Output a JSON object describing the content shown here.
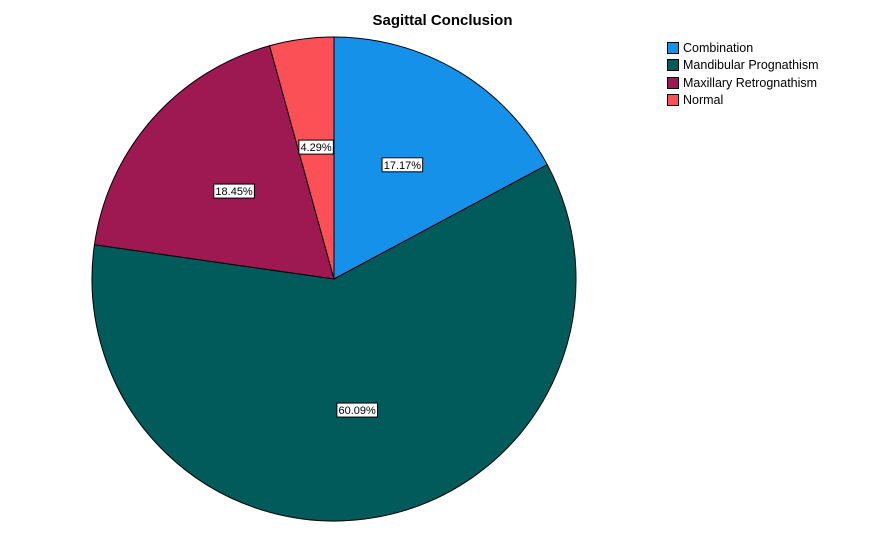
{
  "chart_data": {
    "type": "pie",
    "title": "Sagittal Conclusion",
    "legend_position": "top-right",
    "slices": [
      {
        "label": "Combination",
        "value": 17.17,
        "display": "17.17%",
        "color": "#1591EA"
      },
      {
        "label": "Mandibular Prognathism",
        "value": 60.09,
        "display": "60.09%",
        "color": "#015B5B"
      },
      {
        "label": "Maxillary Retrognathism",
        "value": 18.45,
        "display": "18.45%",
        "color": "#9E1851"
      },
      {
        "label": "Normal",
        "value": 4.29,
        "display": "4.29%",
        "color": "#FA5056"
      }
    ]
  }
}
